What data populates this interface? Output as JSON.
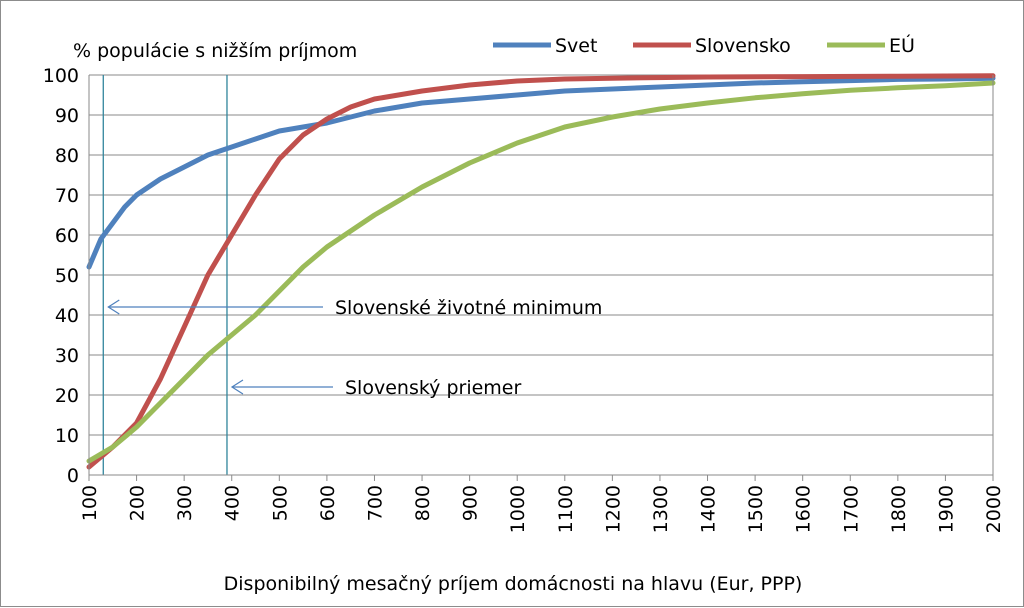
{
  "chart_data": {
    "type": "line",
    "title": "",
    "ylabel": "% populácie s nižším príjmom",
    "xlabel": "Disponibilný mesačný príjem domácnosti na hlavu (Eur, PPP)",
    "xlim": [
      100,
      2000
    ],
    "ylim": [
      0,
      100
    ],
    "x_ticks": [
      "100",
      "200",
      "300",
      "400",
      "500",
      "600",
      "700",
      "800",
      "900",
      "1000",
      "1100",
      "1200",
      "1300",
      "1400",
      "1500",
      "1600",
      "1700",
      "1800",
      "1900",
      "2000"
    ],
    "y_ticks": [
      "0",
      "10",
      "20",
      "30",
      "40",
      "50",
      "60",
      "70",
      "80",
      "90",
      "100"
    ],
    "grid": true,
    "legend_position": "top-right",
    "series": [
      {
        "name": "Svet",
        "color": "#4f81bd",
        "x": [
          100,
          125,
          150,
          175,
          200,
          250,
          300,
          350,
          400,
          450,
          500,
          550,
          600,
          700,
          800,
          900,
          1000,
          1100,
          1200,
          1300,
          1400,
          1500,
          1600,
          1700,
          1800,
          1900,
          2000
        ],
        "y": [
          52,
          59,
          63,
          67,
          70,
          74,
          77,
          80,
          82,
          84,
          86,
          87,
          88,
          91,
          93,
          94,
          95,
          96,
          96.5,
          97,
          97.5,
          98,
          98.3,
          98.6,
          98.9,
          99,
          99.2
        ]
      },
      {
        "name": "Slovensko",
        "color": "#c0504d",
        "x": [
          100,
          150,
          200,
          250,
          300,
          350,
          400,
          450,
          500,
          550,
          600,
          650,
          700,
          800,
          900,
          1000,
          1100,
          1200,
          1400,
          1600,
          1800,
          2000
        ],
        "y": [
          2,
          7,
          13,
          24,
          37,
          50,
          60,
          70,
          79,
          85,
          89,
          92,
          94,
          96,
          97.5,
          98.5,
          99,
          99.2,
          99.5,
          99.6,
          99.7,
          99.8
        ]
      },
      {
        "name": "EÚ",
        "color": "#9bbb59",
        "x": [
          100,
          150,
          200,
          250,
          300,
          350,
          400,
          450,
          500,
          550,
          600,
          700,
          800,
          900,
          1000,
          1100,
          1200,
          1300,
          1400,
          1500,
          1600,
          1700,
          1800,
          1900,
          2000
        ],
        "y": [
          3.5,
          7,
          12,
          18,
          24,
          30,
          35,
          40,
          46,
          52,
          57,
          65,
          72,
          78,
          83,
          87,
          89.5,
          91.5,
          93,
          94.3,
          95.3,
          96.2,
          96.8,
          97.3,
          98
        ]
      }
    ],
    "reference_lines": [
      {
        "x": 130
      },
      {
        "x": 390
      }
    ],
    "annotations": [
      {
        "text": "Slovenské životné minimum",
        "points_to_x": 130,
        "at_y": 45
      },
      {
        "text": "Slovenský priemer",
        "points_to_x": 390,
        "at_y": 25
      }
    ]
  }
}
